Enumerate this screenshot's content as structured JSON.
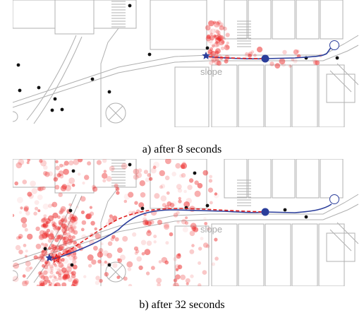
{
  "panels": [
    {
      "id": "a",
      "caption": "a) after 8 seconds",
      "map_label": "slope"
    },
    {
      "id": "b",
      "caption": "b) after 32 seconds",
      "map_label": "slope"
    }
  ],
  "colors": {
    "ground_truth": "#2b3e9b",
    "estimate": "#e02020",
    "particle": "#ec3030",
    "landmark": "#111111",
    "map_line": "#b0b0b0"
  },
  "icons": {
    "start": "star-icon",
    "estimate_start": "star-outline-icon",
    "end": "circle-outline-icon",
    "robot": "filled-circle-icon"
  }
}
